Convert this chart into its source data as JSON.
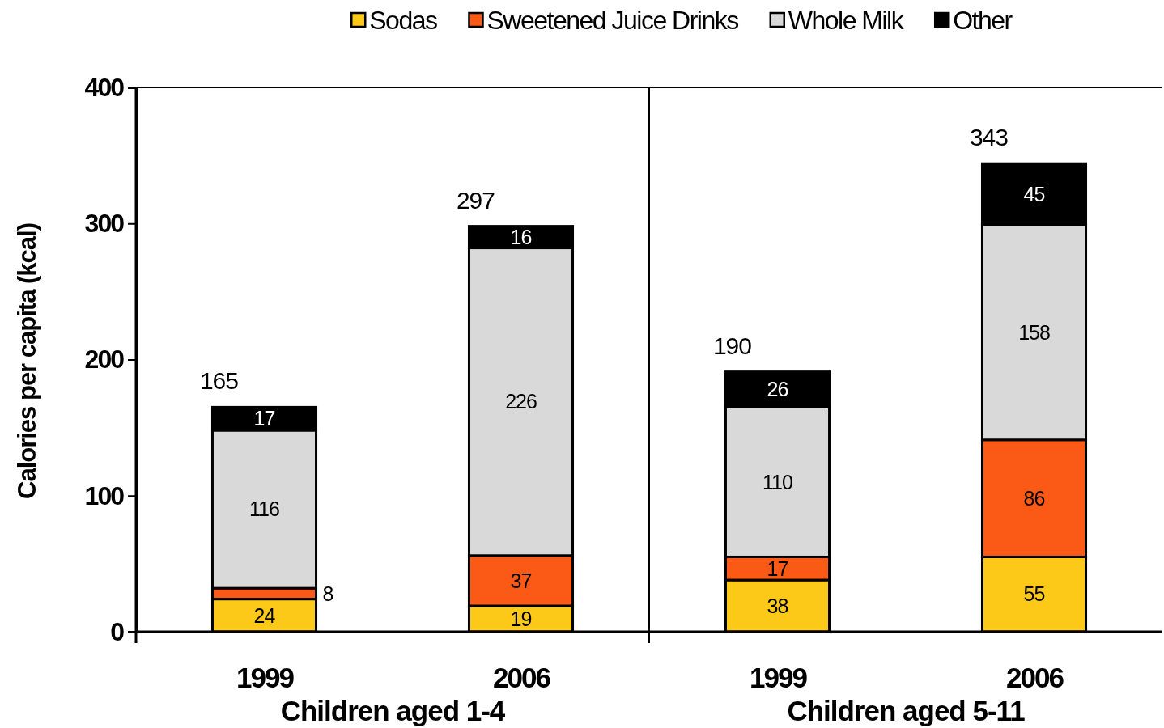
{
  "chart_data": {
    "type": "bar",
    "categories": [
      "1999",
      "2006",
      "1999",
      "2006"
    ],
    "series": [
      {
        "name": "Sodas",
        "color": "#fcc918",
        "values": [
          24,
          19,
          38,
          55
        ]
      },
      {
        "name": "Sweetened Juice Drinks",
        "color": "#fb5a16",
        "values": [
          8,
          37,
          17,
          86
        ]
      },
      {
        "name": "Whole Milk",
        "color": "#d9d9d9",
        "values": [
          116,
          226,
          110,
          158
        ]
      },
      {
        "name": "Other",
        "color": "#000000",
        "values": [
          17,
          16,
          26,
          45
        ]
      }
    ],
    "stacked": true,
    "ylabel": "Calories per capita (kcal)",
    "ylim": [
      0,
      400
    ],
    "yticks": [
      0,
      100,
      200,
      300,
      400
    ],
    "grid": false,
    "data_labels": true,
    "totals": [
      "165",
      "297",
      "190",
      "343"
    ],
    "annotations": [
      "Children aged 1-4",
      "Children aged 5-11"
    ],
    "legend": "top"
  }
}
